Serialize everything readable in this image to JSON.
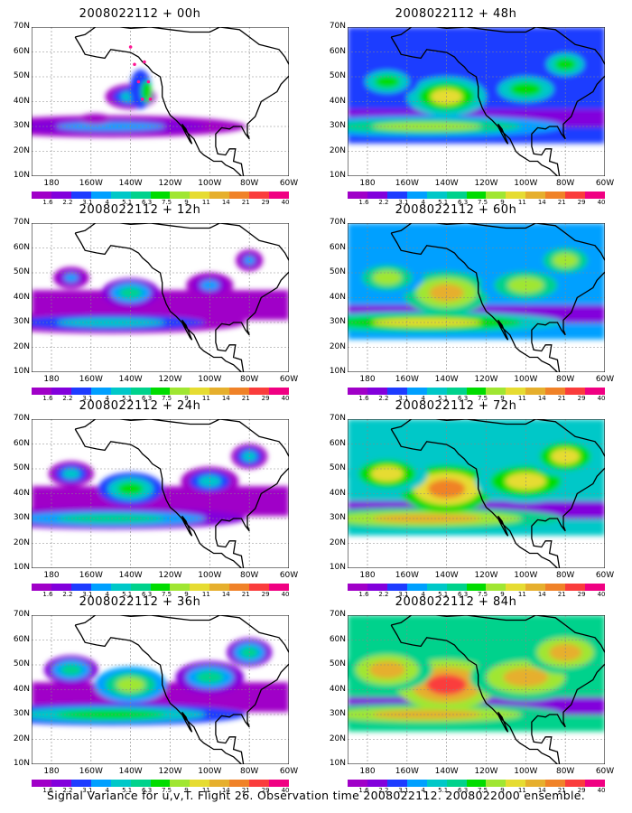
{
  "panels": [
    {
      "title": "2008022112 + 00h",
      "col": 0,
      "row": 0,
      "level": 0
    },
    {
      "title": "2008022112 + 48h",
      "col": 1,
      "row": 0,
      "level": 4
    },
    {
      "title": "2008022112 + 12h",
      "col": 0,
      "row": 1,
      "level": 1
    },
    {
      "title": "2008022112 + 60h",
      "col": 1,
      "row": 1,
      "level": 5
    },
    {
      "title": "2008022112 + 24h",
      "col": 0,
      "row": 2,
      "level": 2
    },
    {
      "title": "2008022112 + 72h",
      "col": 1,
      "row": 2,
      "level": 6
    },
    {
      "title": "2008022112 + 36h",
      "col": 0,
      "row": 3,
      "level": 3
    },
    {
      "title": "2008022112 + 84h",
      "col": 1,
      "row": 3,
      "level": 7
    }
  ],
  "lat_labels": [
    "70N",
    "60N",
    "50N",
    "40N",
    "30N",
    "20N",
    "10N"
  ],
  "lon_labels": [
    "180",
    "160W",
    "140W",
    "120W",
    "100W",
    "80W",
    "60W"
  ],
  "colorbar": {
    "colors": [
      "#a000c8",
      "#8200dc",
      "#1e3cff",
      "#00a0ff",
      "#00c8c8",
      "#00d28c",
      "#00dc00",
      "#a0e632",
      "#e6dc32",
      "#e6af2d",
      "#f08228",
      "#fa3c3c",
      "#f00082"
    ],
    "labels": [
      "1.6",
      "2.2",
      "3.1",
      "4",
      "5.1",
      "6.3",
      "7.5",
      "9",
      "11",
      "14",
      "21",
      "29",
      "40"
    ]
  },
  "caption": "Signal Variance for u,v,T. Flight 26. Observation time 2008022112. 2008022000 ensemble."
}
